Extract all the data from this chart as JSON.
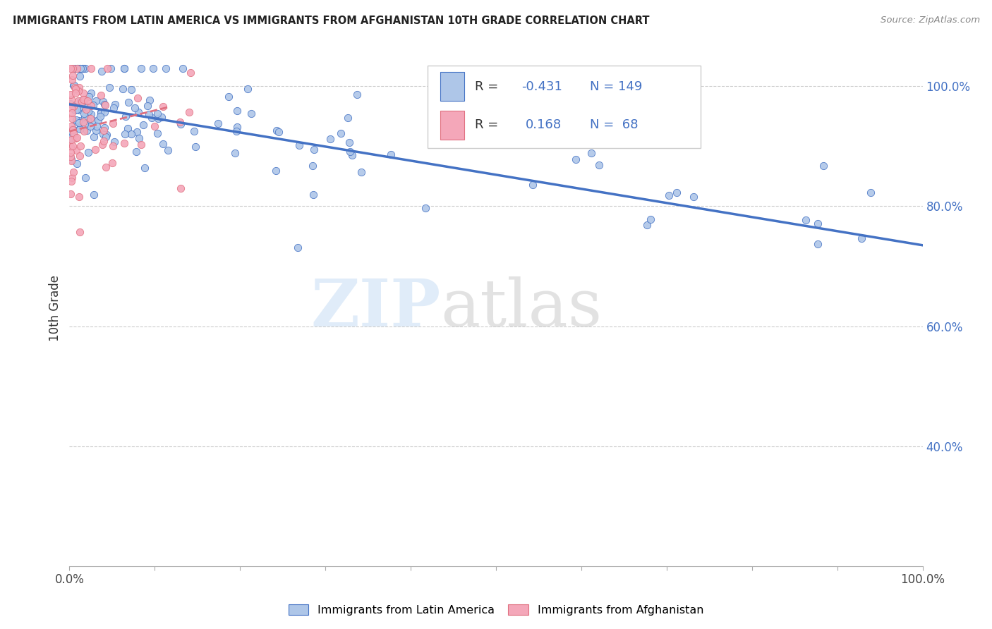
{
  "title": "IMMIGRANTS FROM LATIN AMERICA VS IMMIGRANTS FROM AFGHANISTAN 10TH GRADE CORRELATION CHART",
  "source": "Source: ZipAtlas.com",
  "ylabel": "10th Grade",
  "legend_blue_label": "Immigrants from Latin America",
  "legend_pink_label": "Immigrants from Afghanistan",
  "R_blue": -0.431,
  "N_blue": 149,
  "R_pink": 0.168,
  "N_pink": 68,
  "blue_color": "#aec6e8",
  "pink_color": "#f4a7b9",
  "trendline_blue_color": "#4472c4",
  "trendline_pink_color": "#e07080",
  "grid_color": "#cccccc",
  "trendline_blue_x0": 0.0,
  "trendline_blue_y0": 0.97,
  "trendline_blue_x1": 1.0,
  "trendline_blue_y1": 0.735,
  "trendline_pink_x0": 0.0,
  "trendline_pink_y0": 0.925,
  "trendline_pink_x1": 0.115,
  "trendline_pink_y1": 0.965,
  "xlim": [
    0.0,
    1.0
  ],
  "ylim": [
    0.2,
    1.06
  ],
  "yticks": [
    0.4,
    0.6,
    0.8,
    1.0
  ],
  "ytick_labels": [
    "40.0%",
    "60.0%",
    "80.0%",
    "100.0%"
  ],
  "xtick_labels": [
    "0.0%",
    "100.0%"
  ]
}
